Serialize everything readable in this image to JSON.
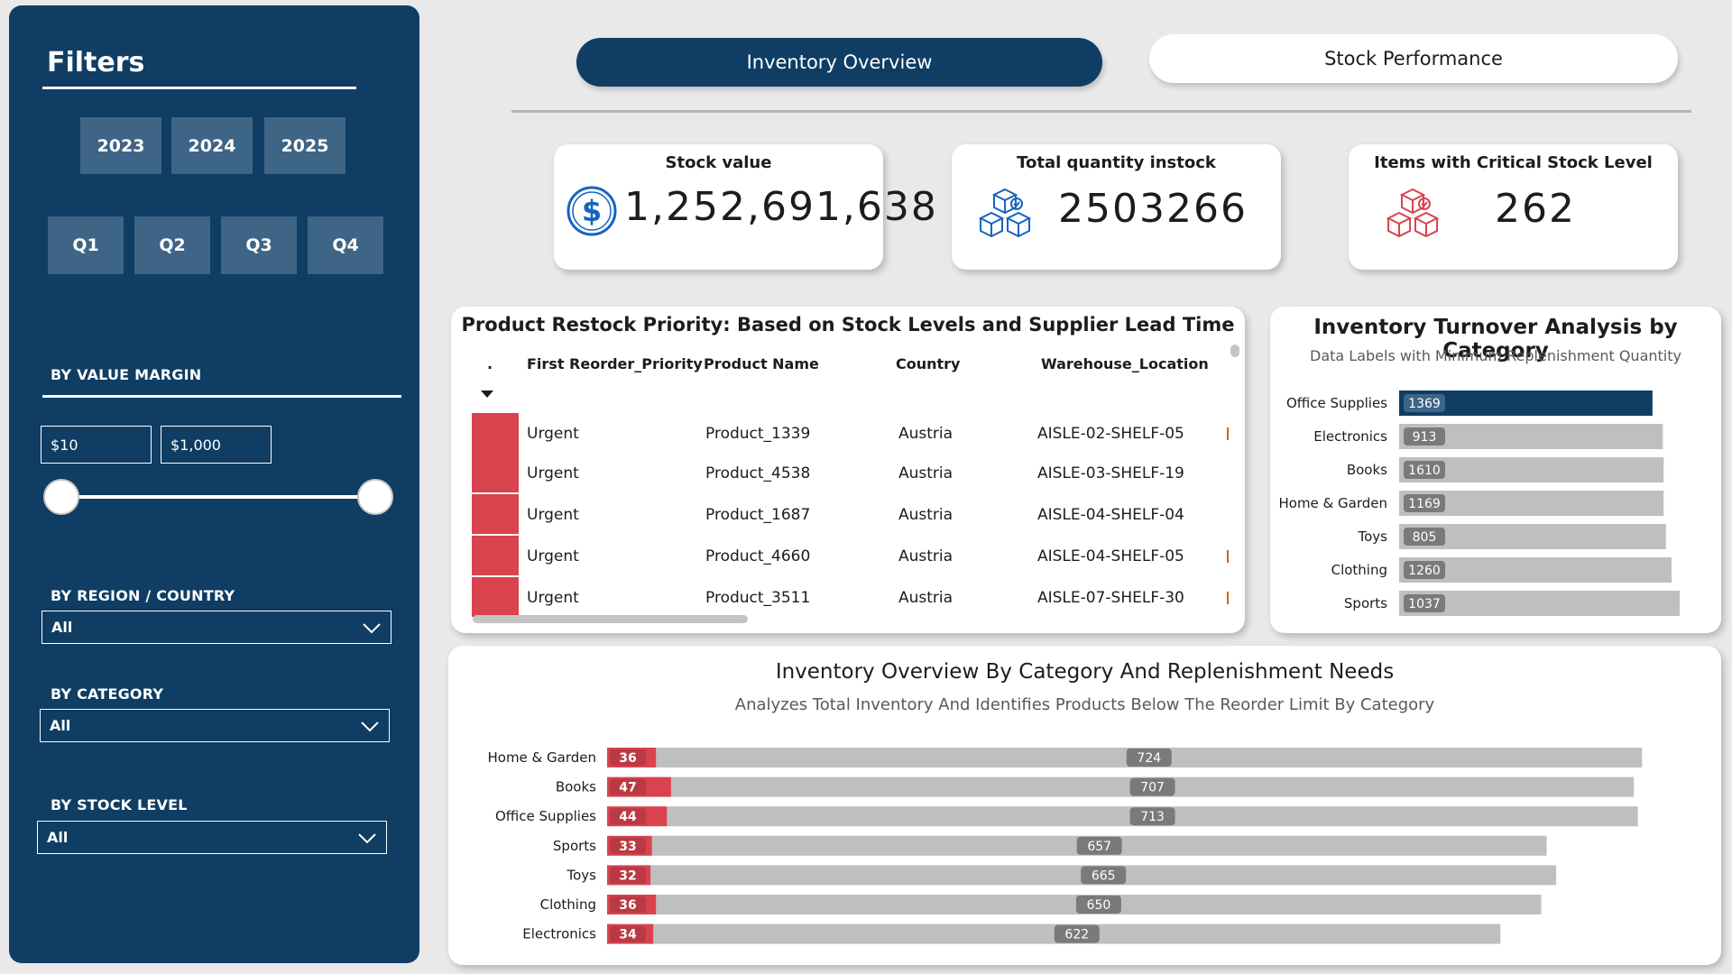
{
  "sidebar": {
    "title": "Filters",
    "years": [
      "2023",
      "2024",
      "2025"
    ],
    "quarters": [
      "Q1",
      "Q2",
      "Q3",
      "Q4"
    ],
    "value_margin": {
      "label": "BY VALUE MARGIN",
      "min": "$10",
      "max": "$1,000"
    },
    "region": {
      "label": "BY REGION / COUNTRY",
      "value": "All"
    },
    "category": {
      "label": "BY CATEGORY",
      "value": "All"
    },
    "stock_level": {
      "label": "BY STOCK LEVEL",
      "value": "All"
    }
  },
  "nav": {
    "active": "Inventory Overview",
    "inactive": "Stock Performance"
  },
  "kpis": {
    "stock_value": {
      "title": "Stock value",
      "value": "1,252,691,638",
      "icon": "dollar-icon"
    },
    "total_qty": {
      "title": "Total quantity instock",
      "value": "2503266",
      "icon": "boxes-icon"
    },
    "critical": {
      "title": "Items with Critical Stock Level",
      "value": "262",
      "icon": "boxes-icon"
    }
  },
  "restock_table": {
    "title": "Product Restock Priority: Based on Stock Levels and Supplier Lead Time",
    "columns": [
      ".",
      "First Reorder_Priority",
      "Product Name",
      "Country",
      "Warehouse_Location"
    ],
    "rows": [
      {
        "priority": "Urgent",
        "product": "Product_1339",
        "country": "Austria",
        "location": "AISLE-02-SHELF-05",
        "tick": true
      },
      {
        "priority": "Urgent",
        "product": "Product_4538",
        "country": "Austria",
        "location": "AISLE-03-SHELF-19",
        "tick": false
      },
      {
        "priority": "Urgent",
        "product": "Product_1687",
        "country": "Austria",
        "location": "AISLE-04-SHELF-04",
        "tick": false
      },
      {
        "priority": "Urgent",
        "product": "Product_4660",
        "country": "Austria",
        "location": "AISLE-04-SHELF-05",
        "tick": true
      },
      {
        "priority": "Urgent",
        "product": "Product_3511",
        "country": "Austria",
        "location": "AISLE-07-SHELF-30",
        "tick": true
      }
    ],
    "colors": {
      "urgent": "#d9434e"
    }
  },
  "turnover": {
    "title": "Inventory Turnover Analysis by Category",
    "subtitle": "Data Labels with Minimum Replenishment Quantity"
  },
  "overview": {
    "title": "Inventory Overview By Category And Replenishment Needs",
    "subtitle": "Analyzes Total Inventory And Identifies Products Below The Reorder Limit By Category"
  },
  "colors": {
    "navy": "#0f3d63",
    "button": "#3e6585",
    "red": "#d9434e",
    "gray_bar": "#bfbfbf",
    "label_bg": "#7a7a7a"
  },
  "chart_data": [
    {
      "type": "bar",
      "orientation": "horizontal",
      "categories": [
        "Office Supplies",
        "Electronics",
        "Books",
        "Home & Garden",
        "Toys",
        "Clothing",
        "Sports"
      ],
      "labels": [
        1369,
        913,
        1610,
        1169,
        805,
        1260,
        1037
      ],
      "bar_fraction": [
        0.903,
        0.94,
        0.943,
        0.943,
        0.951,
        0.971,
        1.0
      ],
      "highlighted": "Office Supplies"
    },
    {
      "type": "bar",
      "orientation": "horizontal",
      "stacked": true,
      "categories": [
        "Home & Garden",
        "Books",
        "Office Supplies",
        "Sports",
        "Toys",
        "Clothing",
        "Electronics"
      ],
      "series": [
        {
          "values": [
            36,
            47,
            44,
            33,
            32,
            36,
            34
          ]
        },
        {
          "values": [
            724,
            707,
            713,
            657,
            665,
            650,
            622
          ]
        }
      ]
    }
  ]
}
